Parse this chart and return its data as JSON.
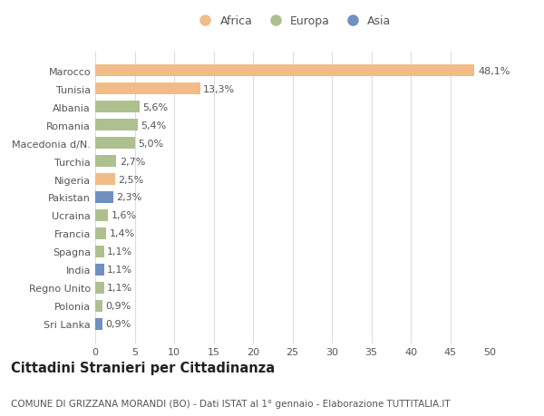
{
  "countries": [
    "Marocco",
    "Tunisia",
    "Albania",
    "Romania",
    "Macedonia d/N.",
    "Turchia",
    "Nigeria",
    "Pakistan",
    "Ucraina",
    "Francia",
    "Spagna",
    "India",
    "Regno Unito",
    "Polonia",
    "Sri Lanka"
  ],
  "values": [
    48.1,
    13.3,
    5.6,
    5.4,
    5.0,
    2.7,
    2.5,
    2.3,
    1.6,
    1.4,
    1.1,
    1.1,
    1.1,
    0.9,
    0.9
  ],
  "labels": [
    "48,1%",
    "13,3%",
    "5,6%",
    "5,4%",
    "5,0%",
    "2,7%",
    "2,5%",
    "2,3%",
    "1,6%",
    "1,4%",
    "1,1%",
    "1,1%",
    "1,1%",
    "0,9%",
    "0,9%"
  ],
  "categories": [
    "Africa",
    "Europa",
    "Asia"
  ],
  "bar_colors": [
    "#f2bc87",
    "#f2bc87",
    "#aec08f",
    "#aec08f",
    "#aec08f",
    "#aec08f",
    "#f2bc87",
    "#7090c0",
    "#aec08f",
    "#aec08f",
    "#aec08f",
    "#7090c0",
    "#aec08f",
    "#aec08f",
    "#7090c0"
  ],
  "legend_colors": [
    "#f2bc87",
    "#aec08f",
    "#7090c0"
  ],
  "title": "Cittadini Stranieri per Cittadinanza",
  "subtitle": "COMUNE DI GRIZZANA MORANDI (BO) - Dati ISTAT al 1° gennaio - Elaborazione TUTTITALIA.IT",
  "xlim": [
    0,
    50
  ],
  "xticks": [
    0,
    5,
    10,
    15,
    20,
    25,
    30,
    35,
    40,
    45,
    50
  ],
  "background_color": "#ffffff",
  "grid_color": "#dddddd",
  "bar_height": 0.65,
  "label_fontsize": 8,
  "tick_fontsize": 8,
  "title_fontsize": 10.5,
  "subtitle_fontsize": 7.5
}
